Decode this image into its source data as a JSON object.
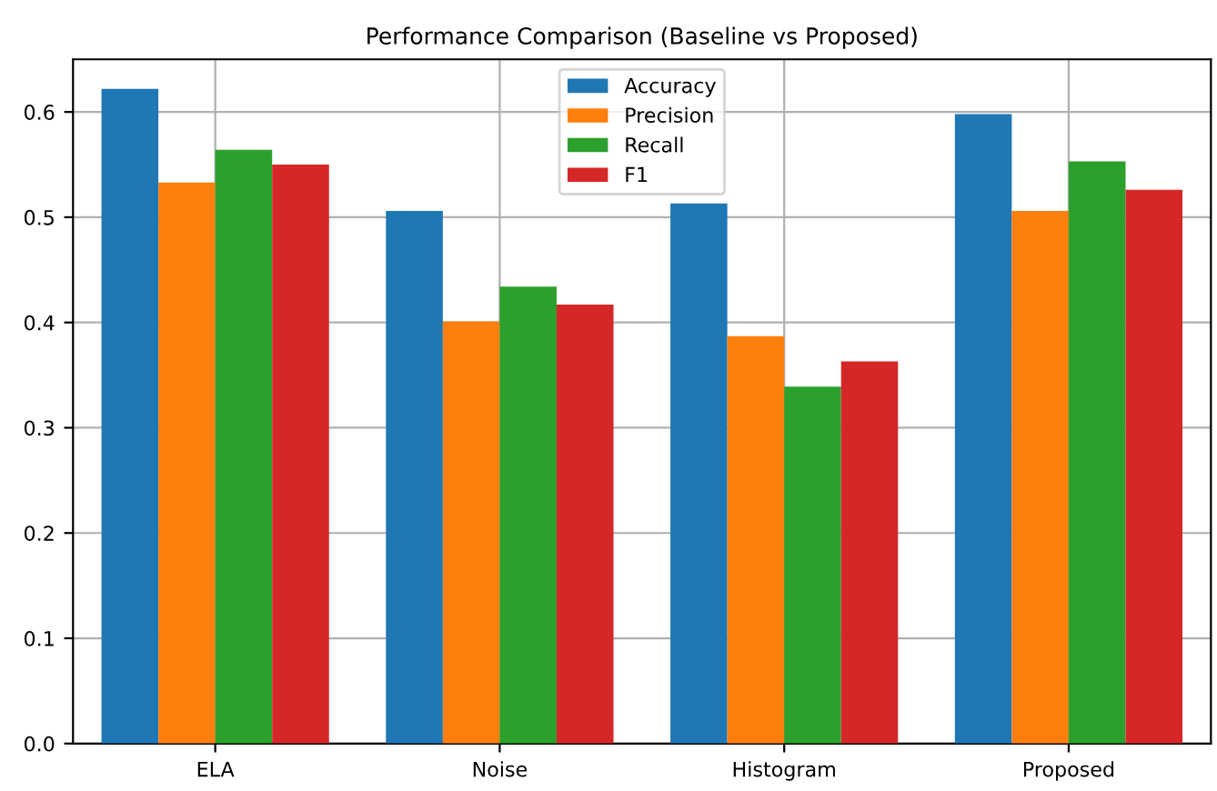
{
  "chart_data": {
    "type": "bar",
    "title": "Performance Comparison (Baseline vs Proposed)",
    "categories": [
      "ELA",
      "Noise",
      "Histogram",
      "Proposed"
    ],
    "series": [
      {
        "name": "Accuracy",
        "color": "#1f77b4",
        "values": [
          0.622,
          0.506,
          0.513,
          0.598
        ]
      },
      {
        "name": "Precision",
        "color": "#ff7f0e",
        "values": [
          0.533,
          0.401,
          0.387,
          0.506
        ]
      },
      {
        "name": "Recall",
        "color": "#2ca02c",
        "values": [
          0.564,
          0.434,
          0.339,
          0.553
        ]
      },
      {
        "name": "F1",
        "color": "#d62728",
        "values": [
          0.55,
          0.417,
          0.363,
          0.526
        ]
      }
    ],
    "ylim": [
      0,
      0.65
    ],
    "yticks": [
      {
        "value": 0,
        "label": "0.0"
      },
      0.1,
      0.2,
      0.3,
      0.4,
      0.5,
      0.6
    ],
    "grid": true,
    "legend": "top"
  }
}
